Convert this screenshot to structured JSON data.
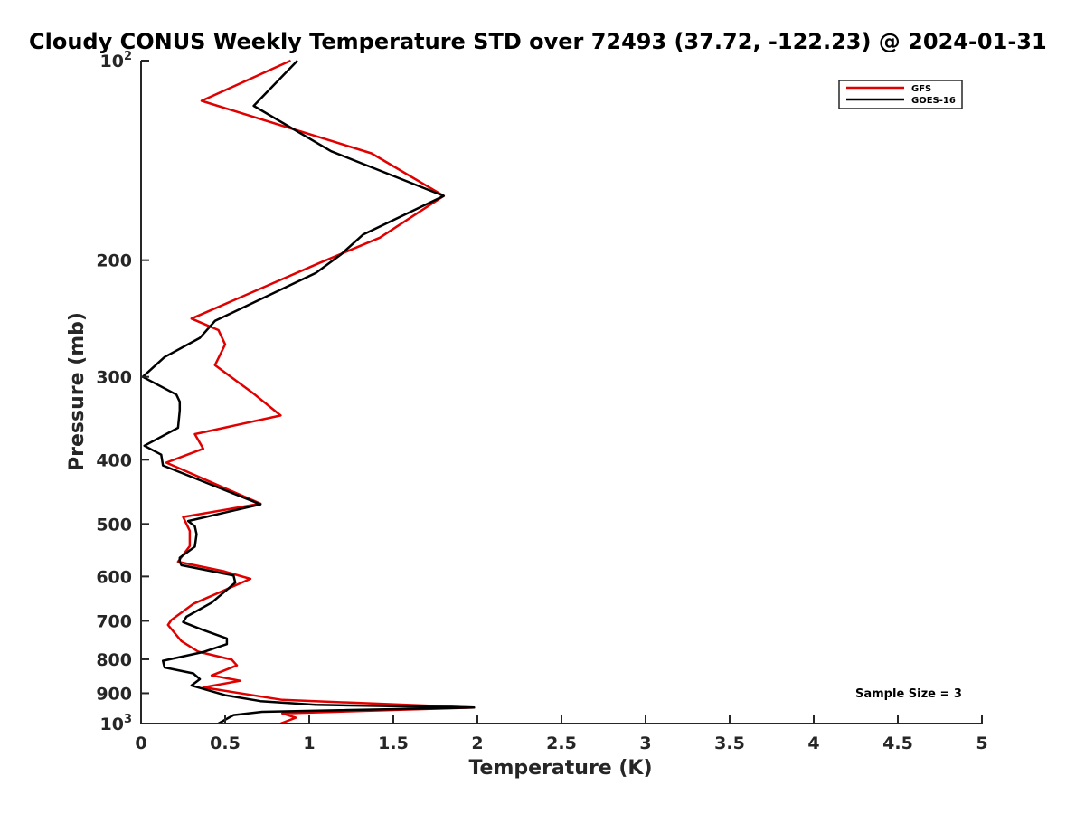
{
  "chart_data": {
    "type": "line",
    "title": "Cloudy CONUS Weekly Temperature STD over 72493 (37.72, -122.23) @ 2024-01-31",
    "xlabel": "Temperature (K)",
    "ylabel": "Pressure (mb)",
    "xlim": [
      0,
      5
    ],
    "ylim": [
      100,
      1000
    ],
    "yscale": "log",
    "y_reversed": true,
    "grid": false,
    "legend_position": "top-right",
    "x_ticks": [
      "0",
      "0.5",
      "1",
      "1.5",
      "2",
      "2.5",
      "3",
      "3.5",
      "4",
      "4.5",
      "5"
    ],
    "x_tick_values": [
      0,
      0.5,
      1,
      1.5,
      2,
      2.5,
      3,
      3.5,
      4,
      4.5,
      5
    ],
    "y_tick_values": [
      100,
      200,
      300,
      400,
      500,
      600,
      700,
      800,
      900,
      1000
    ],
    "y_ticks": [
      {
        "base": "10",
        "exp": "2"
      },
      {
        "base": "200",
        "exp": ""
      },
      {
        "base": "300",
        "exp": ""
      },
      {
        "base": "400",
        "exp": ""
      },
      {
        "base": "500",
        "exp": ""
      },
      {
        "base": "600",
        "exp": ""
      },
      {
        "base": "700",
        "exp": ""
      },
      {
        "base": "800",
        "exp": ""
      },
      {
        "base": "900",
        "exp": ""
      },
      {
        "base": "10",
        "exp": "3"
      }
    ],
    "annotation": "Sample Size = 3",
    "series": [
      {
        "name": "GFS",
        "color": "#e00000",
        "x": [
          0.89,
          0.36,
          1.37,
          1.8,
          1.42,
          1.06,
          0.3,
          0.46,
          0.5,
          0.44,
          0.67,
          0.83,
          0.32,
          0.37,
          0.15,
          0.71,
          0.25,
          0.29,
          0.29,
          0.24,
          0.22,
          0.49,
          0.65,
          0.31,
          0.18,
          0.16,
          0.24,
          0.34,
          0.54,
          0.57,
          0.42,
          0.59,
          0.37,
          0.84,
          1.98,
          0.84,
          0.92,
          0.83
        ],
        "y": [
          100,
          115,
          138,
          160,
          185,
          202,
          245,
          255,
          268,
          288,
          318,
          343,
          366,
          385,
          404,
          466,
          488,
          512,
          540,
          561,
          570,
          589,
          605,
          660,
          698,
          710,
          751,
          779,
          801,
          817,
          846,
          862,
          882,
          921,
          946,
          965,
          980,
          1000
        ]
      },
      {
        "name": "GOES-16",
        "color": "#000000",
        "x": [
          0.93,
          0.67,
          1.13,
          1.8,
          1.32,
          1.19,
          1.04,
          0.44,
          0.35,
          0.14,
          0.01,
          0.21,
          0.23,
          0.23,
          0.22,
          0.02,
          0.12,
          0.13,
          0.71,
          0.28,
          0.32,
          0.33,
          0.32,
          0.23,
          0.23,
          0.24,
          0.55,
          0.56,
          0.42,
          0.27,
          0.25,
          0.36,
          0.51,
          0.51,
          0.37,
          0.13,
          0.14,
          0.31,
          0.35,
          0.3,
          0.5,
          0.71,
          1.04,
          1.98,
          0.72,
          0.55,
          0.46
        ],
        "y": [
          100,
          117,
          137,
          160,
          183,
          196,
          209,
          247,
          262,
          280,
          300,
          319,
          327,
          337,
          358,
          381,
          393,
          408,
          467,
          495,
          504,
          518,
          541,
          562,
          570,
          577,
          598,
          613,
          657,
          690,
          703,
          721,
          744,
          759,
          780,
          804,
          823,
          840,
          857,
          876,
          906,
          925,
          937,
          946,
          960,
          971,
          1000
        ]
      }
    ]
  }
}
